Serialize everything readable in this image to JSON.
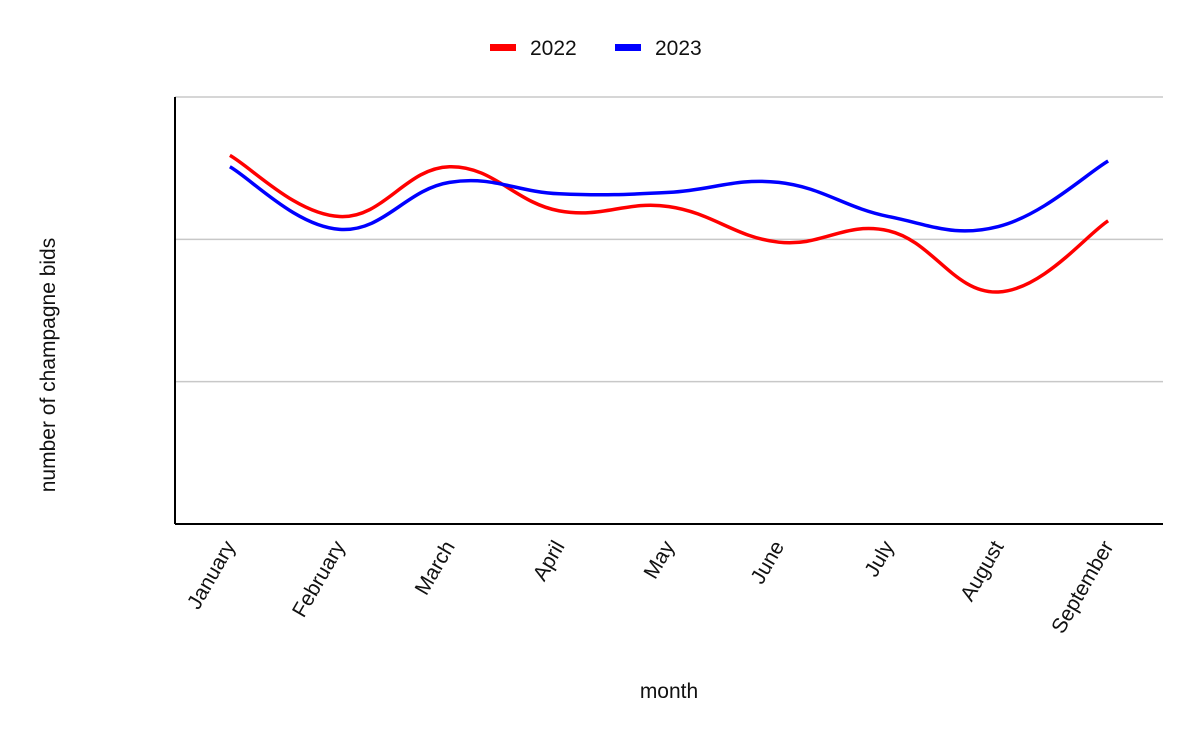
{
  "chart_data": {
    "type": "line",
    "smooth": true,
    "xlabel": "month",
    "ylabel": "number of champagne bids",
    "categories": [
      "January",
      "February",
      "March",
      "April",
      "May",
      "June",
      "July",
      "August",
      "September"
    ],
    "series": [
      {
        "name": "2022",
        "color": "#ff0000",
        "values": [
          2.59,
          2.16,
          2.51,
          2.2,
          2.23,
          1.98,
          2.06,
          1.63,
          2.13
        ]
      },
      {
        "name": "2023",
        "color": "#0000ff",
        "values": [
          2.51,
          2.07,
          2.4,
          2.32,
          2.33,
          2.4,
          2.16,
          2.09,
          2.55
        ]
      }
    ],
    "ylim": [
      0,
      3
    ],
    "y_ticks_labeled": false,
    "grid": true,
    "legend": "top-center"
  }
}
